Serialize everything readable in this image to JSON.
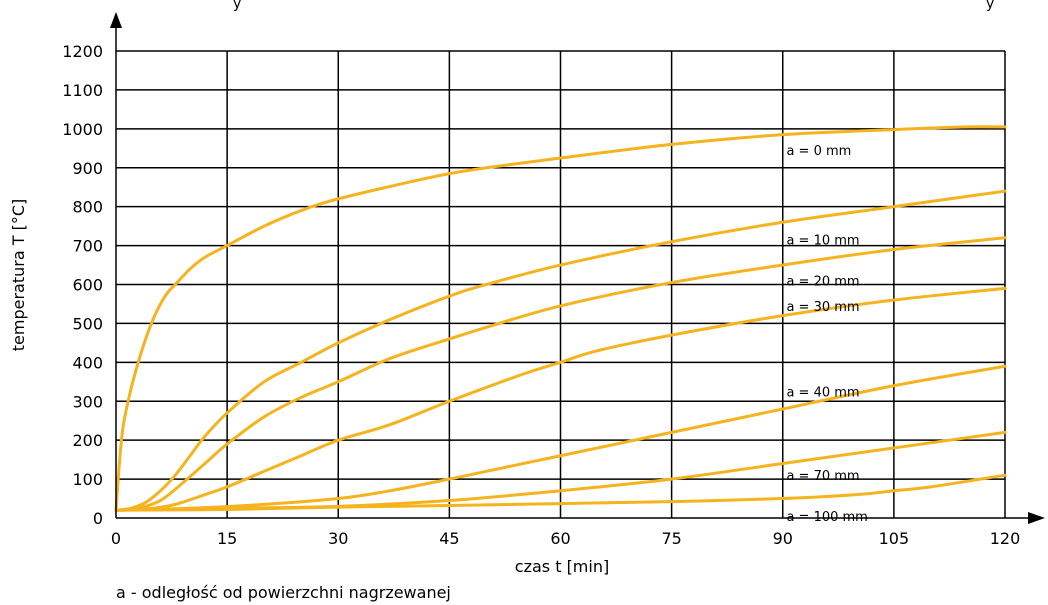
{
  "top_fragment": {
    "left": "y",
    "right": "y"
  },
  "footnote": "a - odległość od powierzchni nagrzewanej",
  "chart_data": {
    "type": "line",
    "title": "",
    "xlabel": "czas t [min]",
    "ylabel": "temperatura T [°C]",
    "xlim": [
      0,
      120
    ],
    "ylim": [
      0,
      1200
    ],
    "xticks": [
      0,
      15,
      30,
      45,
      60,
      75,
      90,
      105,
      120
    ],
    "yticks": [
      0,
      100,
      200,
      300,
      400,
      500,
      600,
      700,
      800,
      900,
      1000,
      1100,
      1200
    ],
    "grid": true,
    "colors": {
      "series": "#f5b31e",
      "grid": "#000000",
      "axis": "#000000"
    },
    "series": [
      {
        "name": "a = 0 mm",
        "x": [
          0,
          0.5,
          1,
          2,
          3,
          4,
          5,
          6,
          7,
          8,
          10,
          12,
          15,
          20,
          25,
          30,
          40,
          45,
          50,
          60,
          75,
          90,
          105,
          110,
          115,
          120
        ],
        "y": [
          20,
          150,
          240,
          330,
          400,
          460,
          510,
          550,
          580,
          600,
          640,
          670,
          700,
          750,
          790,
          820,
          865,
          885,
          900,
          925,
          960,
          985,
          998,
          1002,
          1005,
          1005
        ]
      },
      {
        "name": "a = 10 mm",
        "x": [
          0,
          2,
          4,
          6,
          8,
          10,
          12,
          15,
          20,
          25,
          30,
          37,
          45,
          50,
          60,
          75,
          90,
          105,
          120
        ],
        "y": [
          20,
          25,
          40,
          70,
          110,
          160,
          210,
          270,
          350,
          400,
          450,
          510,
          570,
          600,
          650,
          710,
          760,
          800,
          840
        ]
      },
      {
        "name": "a = 20 mm",
        "x": [
          0,
          3,
          6,
          9,
          12,
          15,
          20,
          25,
          30,
          37,
          45,
          50,
          60,
          75,
          90,
          105,
          120
        ],
        "y": [
          20,
          25,
          45,
          90,
          140,
          190,
          260,
          310,
          350,
          410,
          460,
          490,
          545,
          605,
          650,
          690,
          720
        ]
      },
      {
        "name": "a = 30 mm",
        "x": [
          0,
          5,
          8,
          12,
          15,
          20,
          25,
          30,
          37,
          45,
          55,
          60,
          65,
          75,
          90,
          105,
          120
        ],
        "y": [
          20,
          25,
          35,
          60,
          80,
          120,
          160,
          200,
          240,
          300,
          370,
          400,
          430,
          470,
          520,
          560,
          590
        ]
      },
      {
        "name": "a = 40 mm",
        "x": [
          0,
          10,
          20,
          30,
          37,
          45,
          50,
          60,
          75,
          90,
          105,
          120
        ],
        "y": [
          20,
          25,
          35,
          50,
          70,
          100,
          120,
          160,
          220,
          280,
          340,
          390
        ]
      },
      {
        "name": "a = 70 mm",
        "x": [
          0,
          15,
          30,
          45,
          60,
          75,
          90,
          105,
          120
        ],
        "y": [
          20,
          25,
          30,
          45,
          70,
          100,
          140,
          180,
          220
        ]
      },
      {
        "name": "a = 100 mm",
        "x": [
          0,
          15,
          30,
          45,
          60,
          75,
          90,
          100,
          105,
          110,
          120
        ],
        "y": [
          20,
          22,
          28,
          32,
          37,
          42,
          50,
          60,
          70,
          80,
          110
        ]
      }
    ],
    "labels": [
      {
        "text": "a = 0 mm",
        "x": 90.5,
        "y": 945
      },
      {
        "text": "a = 10 mm",
        "x": 90.5,
        "y": 715
      },
      {
        "text": "a = 20 mm",
        "x": 90.5,
        "y": 610
      },
      {
        "text": "a = 30 mm",
        "x": 90.5,
        "y": 545
      },
      {
        "text": "a = 40 mm",
        "x": 90.5,
        "y": 325
      },
      {
        "text": "a = 70 mm",
        "x": 90.5,
        "y": 110
      },
      {
        "text": "a = 100 mm",
        "x": 90.5,
        "y": 5
      }
    ]
  }
}
